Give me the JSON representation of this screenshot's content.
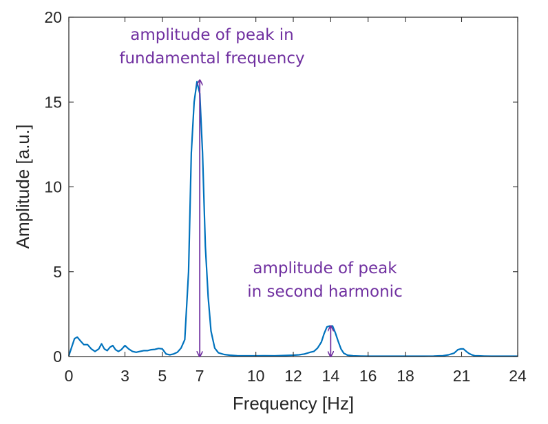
{
  "chart_data": {
    "type": "line",
    "title": "",
    "xlabel": "Frequency [Hz]",
    "ylabel": "Amplitude [a.u.]",
    "xlim": [
      0,
      24
    ],
    "ylim": [
      0,
      20
    ],
    "xticks": [
      0,
      3,
      5,
      7,
      10,
      12,
      14,
      16,
      18,
      21,
      24
    ],
    "yticks": [
      0,
      5,
      10,
      15,
      20
    ],
    "grid": false,
    "box": true,
    "series": [
      {
        "color": "#0072BD",
        "x": [
          0,
          0.15,
          0.3,
          0.45,
          0.6,
          0.8,
          1.0,
          1.2,
          1.4,
          1.6,
          1.75,
          1.9,
          2.05,
          2.2,
          2.35,
          2.5,
          2.65,
          2.8,
          3.0,
          3.2,
          3.4,
          3.6,
          3.8,
          4.0,
          4.2,
          4.4,
          4.6,
          4.8,
          5.0,
          5.2,
          5.4,
          5.6,
          5.8,
          6.0,
          6.2,
          6.4,
          6.55,
          6.7,
          6.85,
          7.0,
          7.15,
          7.3,
          7.45,
          7.6,
          7.8,
          8.0,
          8.3,
          8.6,
          9.0,
          9.5,
          10.0,
          10.5,
          11.0,
          11.5,
          12.0,
          12.3,
          12.6,
          12.9,
          13.1,
          13.3,
          13.5,
          13.65,
          13.8,
          13.95,
          14.1,
          14.25,
          14.4,
          14.55,
          14.7,
          14.9,
          15.2,
          15.6,
          16.0,
          16.5,
          17.0,
          17.5,
          18.0,
          18.5,
          19.0,
          19.5,
          20.0,
          20.3,
          20.6,
          20.8,
          20.95,
          21.1,
          21.25,
          21.4,
          21.55,
          21.7,
          21.9,
          22.2,
          22.6,
          23.0,
          23.5,
          24.0
        ],
        "y": [
          0.05,
          0.55,
          1.05,
          1.15,
          0.95,
          0.7,
          0.7,
          0.45,
          0.3,
          0.45,
          0.75,
          0.45,
          0.35,
          0.55,
          0.65,
          0.4,
          0.3,
          0.4,
          0.65,
          0.45,
          0.3,
          0.25,
          0.3,
          0.35,
          0.35,
          0.4,
          0.42,
          0.48,
          0.45,
          0.15,
          0.1,
          0.15,
          0.25,
          0.5,
          1.0,
          5.0,
          12.0,
          15.0,
          16.2,
          15.5,
          12.0,
          6.5,
          3.5,
          1.5,
          0.5,
          0.22,
          0.12,
          0.08,
          0.05,
          0.04,
          0.04,
          0.05,
          0.04,
          0.06,
          0.08,
          0.1,
          0.15,
          0.25,
          0.3,
          0.5,
          0.85,
          1.35,
          1.75,
          1.8,
          1.8,
          1.4,
          0.9,
          0.45,
          0.2,
          0.08,
          0.04,
          0.03,
          0.02,
          0.02,
          0.02,
          0.02,
          0.02,
          0.02,
          0.02,
          0.03,
          0.05,
          0.1,
          0.2,
          0.4,
          0.45,
          0.45,
          0.3,
          0.18,
          0.1,
          0.05,
          0.04,
          0.03,
          0.02,
          0.02,
          0.02,
          0.02
        ]
      }
    ],
    "annotations": [
      {
        "lines": [
          "amplitude of peak in",
          "fundamental frequency"
        ],
        "color": "#7030A0",
        "arrow_x": 7,
        "arrow_y_from": 0,
        "arrow_y_to": 16.3
      },
      {
        "lines": [
          "amplitude of peak",
          "in second harmonic"
        ],
        "color": "#7030A0",
        "arrow_x": 14,
        "arrow_y_from": 0,
        "arrow_y_to": 1.8
      }
    ]
  }
}
